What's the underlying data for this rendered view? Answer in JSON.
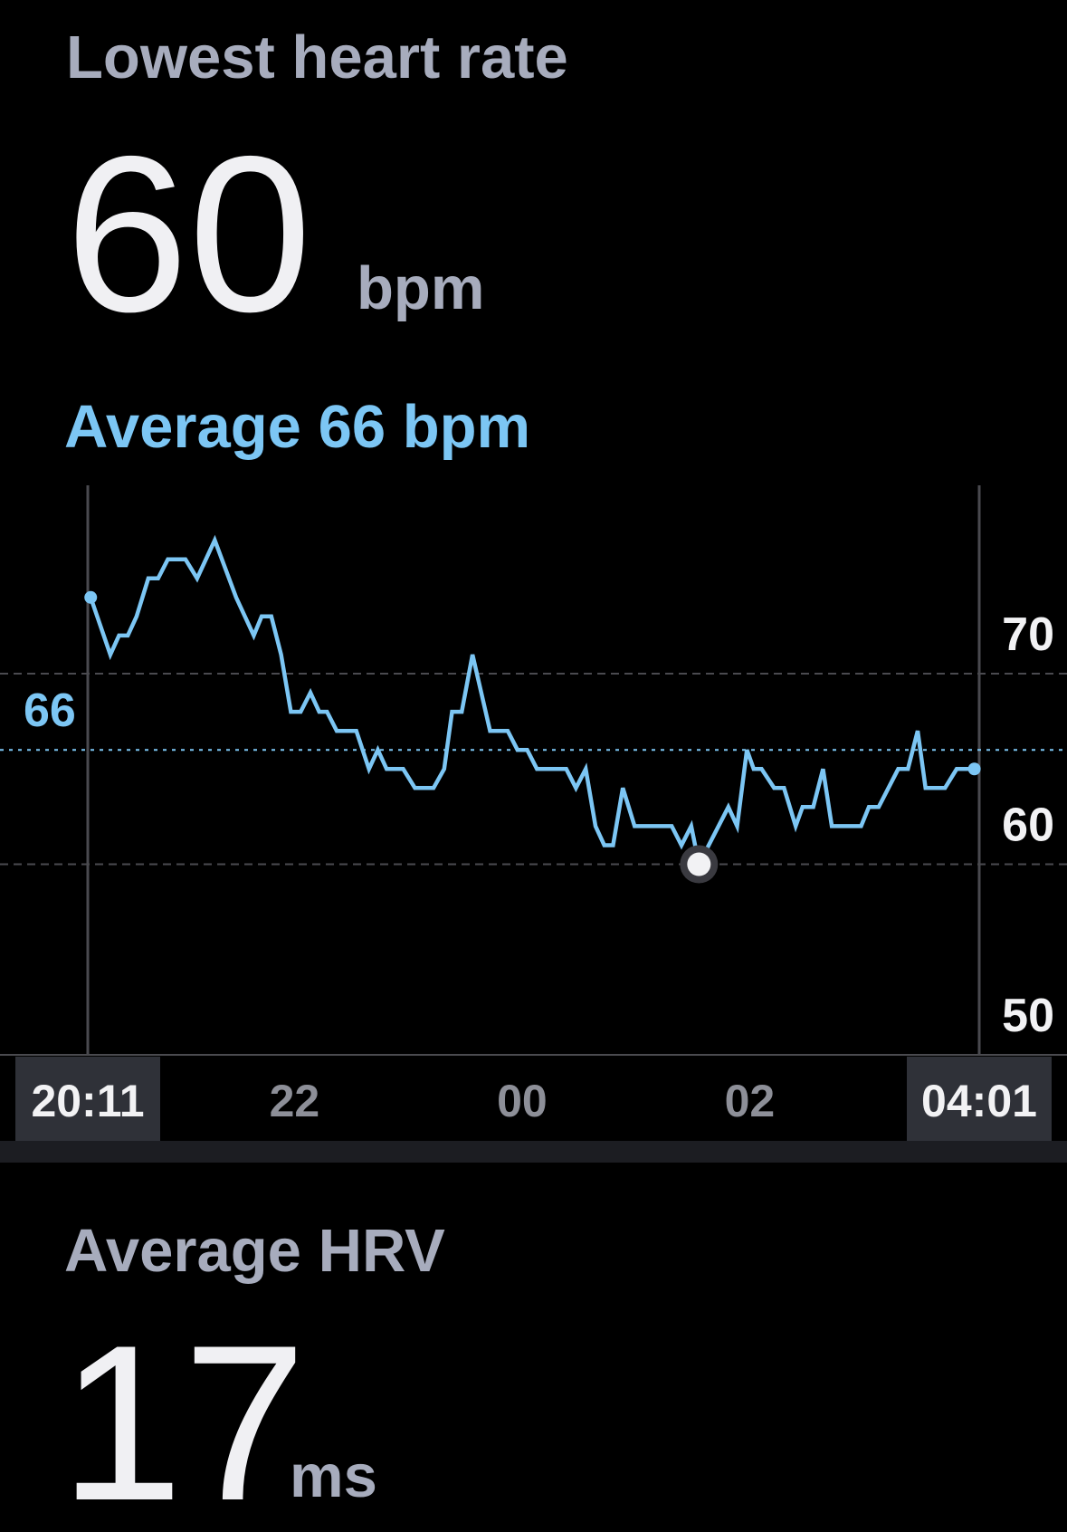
{
  "header": {
    "title": "Lowest heart rate",
    "value": 60,
    "unit": "bpm"
  },
  "chart_data": {
    "type": "line",
    "subtitle": "Average 66 bpm",
    "x": [
      20.209,
      20.381,
      20.458,
      20.535,
      20.612,
      20.715,
      20.801,
      20.887,
      21.041,
      21.144,
      21.299,
      21.487,
      21.642,
      21.711,
      21.796,
      21.882,
      21.968,
      22.054,
      22.14,
      22.217,
      22.285,
      22.371,
      22.543,
      22.654,
      22.732,
      22.809,
      22.955,
      23.058,
      23.221,
      23.315,
      23.384,
      23.469,
      23.564,
      23.718,
      23.873,
      23.959,
      24.044,
      24.13,
      24.388,
      24.473,
      24.559,
      24.645,
      24.722,
      24.799,
      24.885,
      24.988,
      25.314,
      25.4,
      25.486,
      25.554,
      25.812,
      25.889,
      25.975,
      26.035,
      26.104,
      26.215,
      26.301,
      26.404,
      26.464,
      26.558,
      26.644,
      26.721,
      26.979,
      27.047,
      27.133,
      27.305,
      27.39,
      27.476,
      27.545,
      27.716,
      27.819,
      27.974
    ],
    "series": [
      {
        "color": "#7cc6f4",
        "values": [
          74,
          71,
          72,
          72,
          73,
          75,
          75,
          76,
          76,
          75,
          77,
          74,
          72,
          73,
          73,
          71,
          68,
          68,
          69,
          68,
          68,
          67,
          67,
          65,
          66,
          65,
          65,
          64,
          64,
          65,
          68,
          68,
          71,
          67,
          67,
          66,
          66,
          65,
          65,
          64,
          65,
          62,
          61,
          61,
          64,
          62,
          62,
          61,
          62,
          60,
          63,
          62,
          66,
          65,
          65,
          64,
          64,
          62,
          63,
          63,
          65,
          62,
          62,
          63,
          63,
          65,
          65,
          67,
          64,
          64,
          65,
          65
        ]
      }
    ],
    "xlim": [
      20.1833,
      28.0167
    ],
    "xticks": [
      {
        "value": 20.1833,
        "label": "20:11"
      },
      22,
      {
        "value": 24,
        "label": "00"
      },
      {
        "value": 26,
        "label": "02"
      },
      {
        "value": 28.0167,
        "label": "04:01"
      }
    ],
    "ylim": [
      50,
      80
    ],
    "yticks": [
      50,
      60,
      70
    ],
    "average": 66,
    "grid": true
  },
  "hrv": {
    "title": "Average HRV",
    "value": 17,
    "unit": "ms"
  }
}
